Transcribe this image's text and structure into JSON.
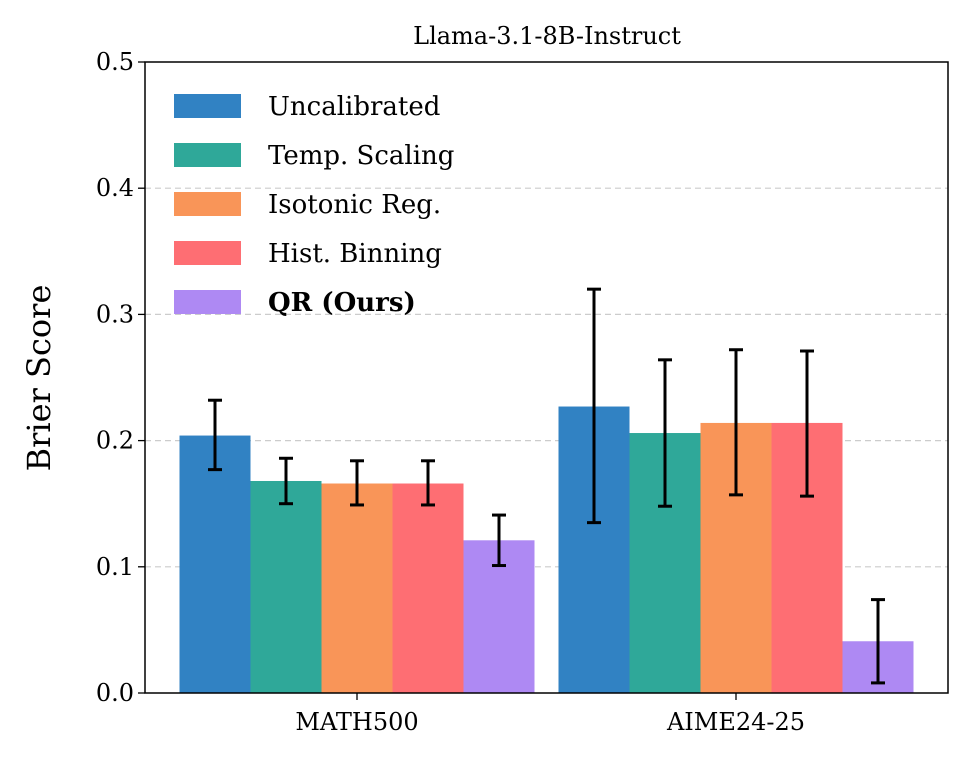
{
  "chart_data": {
    "type": "bar",
    "title": "Llama-3.1-8B-Instruct",
    "xlabel": "",
    "ylabel": "Brier Score",
    "ylim": [
      0,
      0.5
    ],
    "yticks": [
      "0.0",
      "0.1",
      "0.2",
      "0.3",
      "0.4",
      "0.5"
    ],
    "grid": "horizontal dashed",
    "legend": "top-left",
    "categories": [
      "MATH500",
      "AIME24-25"
    ],
    "series": [
      {
        "name": "Uncalibrated",
        "color": "#3182c3",
        "bold": false,
        "values": [
          0.204,
          0.227
        ],
        "err_low": [
          0.177,
          0.135
        ],
        "err_high": [
          0.232,
          0.32
        ]
      },
      {
        "name": "Temp. Scaling",
        "color": "#2fa899",
        "bold": false,
        "values": [
          0.168,
          0.206
        ],
        "err_low": [
          0.15,
          0.148
        ],
        "err_high": [
          0.186,
          0.264
        ]
      },
      {
        "name": "Isotonic Reg.",
        "color": "#f99558",
        "bold": false,
        "values": [
          0.166,
          0.214
        ],
        "err_low": [
          0.149,
          0.157
        ],
        "err_high": [
          0.184,
          0.272
        ]
      },
      {
        "name": "Hist. Binning",
        "color": "#fe6e73",
        "bold": false,
        "values": [
          0.166,
          0.214
        ],
        "err_low": [
          0.149,
          0.156
        ],
        "err_high": [
          0.184,
          0.271
        ]
      },
      {
        "name": "QR (Ours)",
        "color": "#ae89f3",
        "bold": true,
        "values": [
          0.121,
          0.041
        ],
        "err_low": [
          0.101,
          0.008
        ],
        "err_high": [
          0.141,
          0.074
        ]
      }
    ]
  }
}
